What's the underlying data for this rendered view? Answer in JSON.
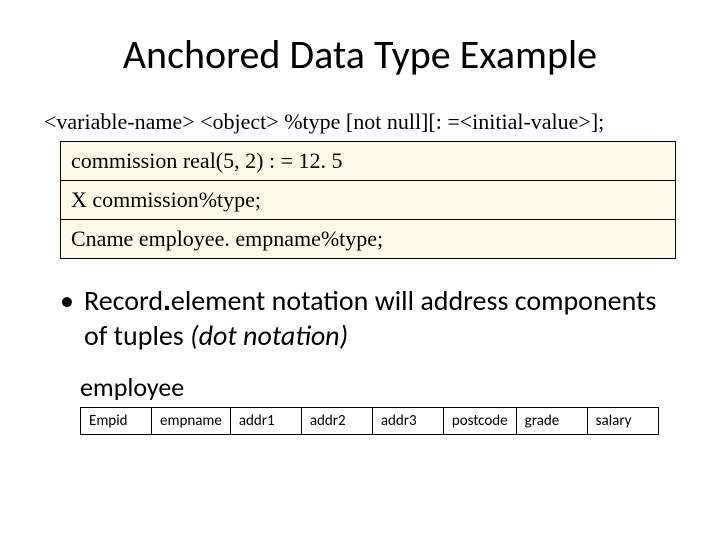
{
  "title": "Anchored Data Type Example",
  "syntax_line": "<variable-name> <object> %type  [not null][: =<initial-value>];",
  "code_lines": [
    "commission real(5, 2) : = 12. 5",
    "X commission%type;",
    "Cname employee. empname%type;"
  ],
  "bullet": {
    "lead": "Record",
    "dot": ".",
    "rest": "element notation will address components of tuples ",
    "paren": "(dot notation)"
  },
  "table": {
    "label": "employee",
    "columns": [
      "Empid",
      "empname",
      "addr1",
      "addr2",
      "addr3",
      "postcode",
      "grade",
      "salary"
    ]
  },
  "colors": {
    "code_bg": "#fdf9e6",
    "border": "#000000",
    "text": "#000000",
    "page_bg": "#ffffff"
  }
}
